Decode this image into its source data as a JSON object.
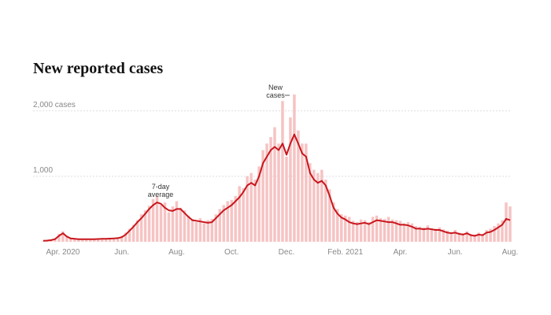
{
  "chart_data": {
    "type": "bar-line",
    "title": "New reported cases",
    "categories": [
      null,
      null,
      null,
      null,
      null,
      "Apr. 2020",
      null,
      null,
      null,
      null,
      null,
      null,
      null,
      null,
      null,
      null,
      null,
      null,
      null,
      null,
      "Jun.",
      null,
      null,
      null,
      null,
      null,
      null,
      null,
      null,
      null,
      null,
      null,
      null,
      null,
      "Aug.",
      null,
      null,
      null,
      null,
      null,
      null,
      null,
      null,
      null,
      null,
      null,
      null,
      null,
      "Oct.",
      null,
      null,
      null,
      null,
      null,
      null,
      null,
      null,
      null,
      null,
      null,
      null,
      null,
      "Dec.",
      null,
      null,
      null,
      null,
      null,
      null,
      null,
      null,
      null,
      null,
      null,
      null,
      null,
      null,
      "Feb. 2021",
      null,
      null,
      null,
      null,
      null,
      null,
      null,
      null,
      null,
      null,
      null,
      null,
      null,
      "Apr.",
      null,
      null,
      null,
      null,
      null,
      null,
      null,
      null,
      null,
      null,
      null,
      null,
      null,
      "Jun.",
      null,
      null,
      null,
      null,
      null,
      null,
      null,
      null,
      null,
      null,
      null,
      null,
      null,
      "Aug."
    ],
    "series": [
      {
        "name": "New cases",
        "color": "#f6c3c3",
        "values": [
          10,
          20,
          30,
          50,
          120,
          160,
          90,
          60,
          40,
          50,
          35,
          45,
          30,
          50,
          40,
          55,
          40,
          60,
          45,
          70,
          90,
          140,
          200,
          260,
          330,
          420,
          480,
          550,
          650,
          700,
          560,
          600,
          450,
          540,
          620,
          520,
          480,
          400,
          350,
          300,
          360,
          280,
          330,
          350,
          420,
          500,
          560,
          620,
          640,
          700,
          850,
          820,
          1000,
          1050,
          950,
          1150,
          1400,
          1500,
          1600,
          1750,
          1500,
          2150,
          1300,
          1900,
          2250,
          1700,
          1500,
          1500,
          1200,
          1100,
          1050,
          1100,
          950,
          800,
          600,
          500,
          420,
          400,
          380,
          320,
          300,
          340,
          330,
          300,
          380,
          400,
          360,
          350,
          380,
          340,
          330,
          320,
          280,
          300,
          280,
          240,
          230,
          220,
          250,
          210,
          200,
          220,
          190,
          170,
          150,
          180,
          140,
          130,
          160,
          120,
          110,
          140,
          120,
          180,
          200,
          240,
          280,
          330,
          600,
          540
        ]
      },
      {
        "name": "7-day average",
        "color": "#c8161d",
        "values": [
          15,
          18,
          25,
          40,
          90,
          130,
          80,
          50,
          45,
          40,
          40,
          38,
          40,
          40,
          42,
          45,
          45,
          48,
          50,
          55,
          70,
          110,
          170,
          230,
          300,
          360,
          430,
          500,
          560,
          600,
          580,
          520,
          480,
          470,
          500,
          500,
          440,
          380,
          330,
          320,
          310,
          300,
          290,
          300,
          360,
          420,
          480,
          520,
          560,
          620,
          680,
          760,
          860,
          900,
          860,
          1000,
          1200,
          1300,
          1400,
          1450,
          1400,
          1500,
          1330,
          1500,
          1640,
          1500,
          1350,
          1300,
          1050,
          950,
          900,
          930,
          860,
          700,
          520,
          430,
          370,
          340,
          300,
          280,
          270,
          280,
          290,
          270,
          300,
          330,
          320,
          310,
          300,
          300,
          280,
          260,
          260,
          250,
          230,
          200,
          200,
          190,
          200,
          190,
          180,
          180,
          160,
          140,
          130,
          140,
          120,
          110,
          130,
          100,
          90,
          110,
          100,
          140,
          150,
          180,
          220,
          260,
          350,
          330
        ]
      }
    ],
    "annotations": [
      {
        "lines": [
          "7-day",
          "average"
        ]
      },
      {
        "lines": [
          "New",
          "cases"
        ]
      }
    ],
    "ylim": [
      0,
      2250
    ],
    "yticks": [
      {
        "value": 1000,
        "label": "1,000"
      },
      {
        "value": 2000,
        "label": "2,000 cases"
      }
    ],
    "grid": true
  }
}
